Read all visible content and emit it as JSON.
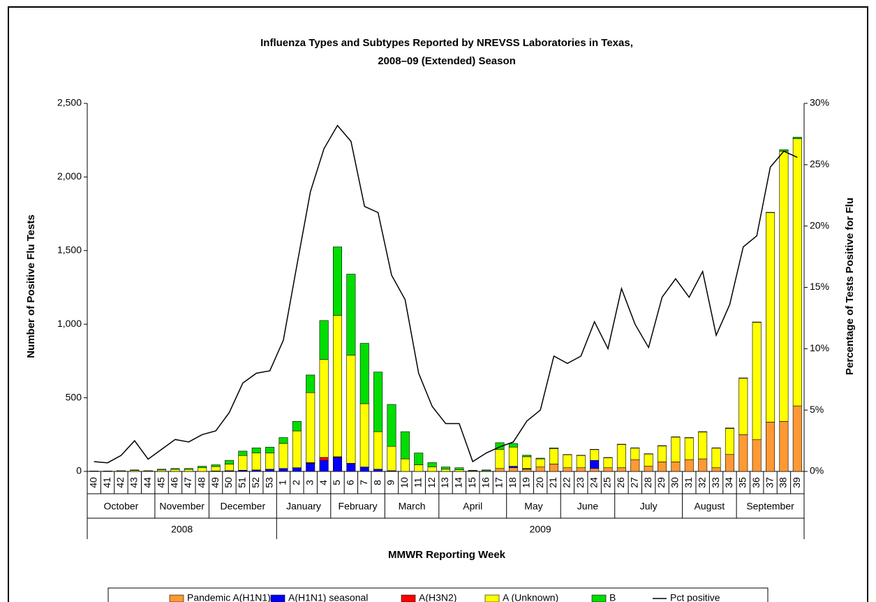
{
  "chart_data": {
    "type": "bar",
    "title": [
      "Influenza Types and Subtypes Reported by NREVSS Laboratories in Texas,",
      "2008–09 (Extended) Season"
    ],
    "ylabel": "Number of Positive Flu Tests",
    "y2label": "Percentage of Tests Positive for Flu",
    "xlabel": "MMWR Reporting Week",
    "categories": [
      "40",
      "41",
      "42",
      "43",
      "44",
      "45",
      "46",
      "47",
      "48",
      "49",
      "50",
      "51",
      "52",
      "53",
      "1",
      "2",
      "3",
      "4",
      "5",
      "6",
      "7",
      "8",
      "9",
      "10",
      "11",
      "12",
      "13",
      "14",
      "15",
      "16",
      "17",
      "18",
      "19",
      "20",
      "21",
      "22",
      "23",
      "24",
      "25",
      "26",
      "27",
      "28",
      "29",
      "30",
      "31",
      "32",
      "33",
      "34",
      "35",
      "36",
      "37",
      "38",
      "39"
    ],
    "month_groups": [
      {
        "label": "October",
        "span": 5
      },
      {
        "label": "November",
        "span": 4
      },
      {
        "label": "December",
        "span": 5
      },
      {
        "label": "January",
        "span": 4
      },
      {
        "label": "February",
        "span": 4
      },
      {
        "label": "March",
        "span": 4
      },
      {
        "label": "April",
        "span": 5
      },
      {
        "label": "May",
        "span": 4
      },
      {
        "label": "June",
        "span": 4
      },
      {
        "label": "July",
        "span": 5
      },
      {
        "label": "August",
        "span": 4
      },
      {
        "label": "September",
        "span": 5
      }
    ],
    "year_groups": [
      {
        "label": "2008",
        "span": 14
      },
      {
        "label": "2009",
        "span": 39
      }
    ],
    "stacked": true,
    "series": [
      {
        "name": "Pandemic A(H1N1)",
        "color": "#FF9933",
        "values": [
          0,
          0,
          0,
          0,
          0,
          0,
          0,
          0,
          0,
          0,
          0,
          0,
          0,
          0,
          0,
          0,
          0,
          0,
          0,
          0,
          0,
          0,
          0,
          0,
          0,
          0,
          0,
          0,
          0,
          0,
          20,
          25,
          15,
          30,
          50,
          25,
          25,
          20,
          25,
          25,
          80,
          35,
          65,
          65,
          80,
          85,
          25,
          115,
          250,
          215,
          335,
          340,
          445
        ]
      },
      {
        "name": "A(H1N1) seasonal",
        "color": "#0000FF",
        "values": [
          0,
          0,
          0,
          0,
          0,
          0,
          0,
          0,
          0,
          3,
          5,
          8,
          10,
          15,
          20,
          25,
          55,
          75,
          95,
          55,
          30,
          15,
          5,
          0,
          0,
          0,
          0,
          0,
          0,
          0,
          0,
          10,
          5,
          0,
          0,
          0,
          0,
          55,
          0,
          0,
          0,
          0,
          0,
          0,
          0,
          0,
          0,
          0,
          0,
          0,
          0,
          0,
          0
        ]
      },
      {
        "name": "A(H3N2)",
        "color": "#FF0000",
        "values": [
          0,
          0,
          0,
          0,
          0,
          0,
          0,
          0,
          0,
          0,
          0,
          0,
          0,
          0,
          0,
          0,
          5,
          20,
          5,
          0,
          0,
          0,
          0,
          0,
          0,
          0,
          0,
          0,
          0,
          0,
          0,
          0,
          0,
          0,
          0,
          0,
          0,
          0,
          0,
          0,
          0,
          0,
          0,
          0,
          0,
          0,
          0,
          0,
          0,
          0,
          0,
          0,
          0
        ]
      },
      {
        "name": "A (Unknown)",
        "color": "#FFFF00",
        "values": [
          3,
          3,
          4,
          7,
          4,
          10,
          14,
          14,
          25,
          30,
          45,
          100,
          115,
          110,
          170,
          250,
          475,
          665,
          960,
          735,
          430,
          255,
          165,
          85,
          45,
          30,
          15,
          12,
          4,
          5,
          130,
          130,
          80,
          55,
          105,
          88,
          83,
          73,
          68,
          158,
          78,
          83,
          108,
          168,
          148,
          183,
          133,
          177,
          383,
          798,
          1423,
          1835,
          1815
        ]
      },
      {
        "name": "B",
        "color": "#00DD00",
        "values": [
          0,
          0,
          1,
          3,
          1,
          5,
          6,
          6,
          10,
          12,
          25,
          30,
          35,
          40,
          40,
          65,
          120,
          265,
          465,
          550,
          410,
          405,
          285,
          185,
          80,
          30,
          15,
          13,
          4,
          5,
          45,
          25,
          10,
          5,
          5,
          2,
          2,
          2,
          2,
          2,
          2,
          2,
          2,
          2,
          2,
          2,
          2,
          3,
          2,
          2,
          2,
          10,
          10
        ]
      },
      {
        "name": "Pct positive",
        "color": "#000000",
        "axis": "y2",
        "type": "line",
        "values": [
          0.8,
          0.7,
          1.3,
          2.5,
          1.0,
          1.8,
          2.6,
          2.4,
          3.0,
          3.3,
          4.8,
          7.2,
          8.0,
          8.2,
          10.7,
          16.8,
          22.8,
          26.3,
          28.2,
          26.9,
          21.6,
          21.1,
          16.0,
          14.0,
          8.0,
          5.3,
          3.9,
          3.9,
          0.8,
          1.5,
          2.0,
          2.4,
          4.1,
          5.0,
          9.4,
          8.8,
          9.4,
          12.2,
          10.0,
          14.9,
          12.0,
          10.1,
          14.2,
          15.7,
          14.2,
          16.3,
          11.1,
          13.6,
          18.3,
          19.2,
          24.8,
          26.1,
          25.6
        ]
      }
    ],
    "ylim": [
      0,
      2500
    ],
    "yticks": [
      0,
      500,
      {
        "value": 1000,
        "label": "1,000"
      },
      {
        "value": 1500,
        "label": "1,500"
      },
      {
        "value": 2000,
        "label": "2,000"
      },
      {
        "value": 2500,
        "label": "2,500"
      }
    ],
    "y2lim": [
      0,
      30
    ],
    "y2ticks": [
      {
        "value": 0,
        "label": "0%"
      },
      {
        "value": 5,
        "label": "5%"
      },
      {
        "value": 10,
        "label": "10%"
      },
      {
        "value": 15,
        "label": "15%"
      },
      {
        "value": 20,
        "label": "20%"
      },
      {
        "value": 25,
        "label": "25%"
      },
      {
        "value": 30,
        "label": "30%"
      }
    ],
    "grid": false,
    "legend": "bottom"
  }
}
